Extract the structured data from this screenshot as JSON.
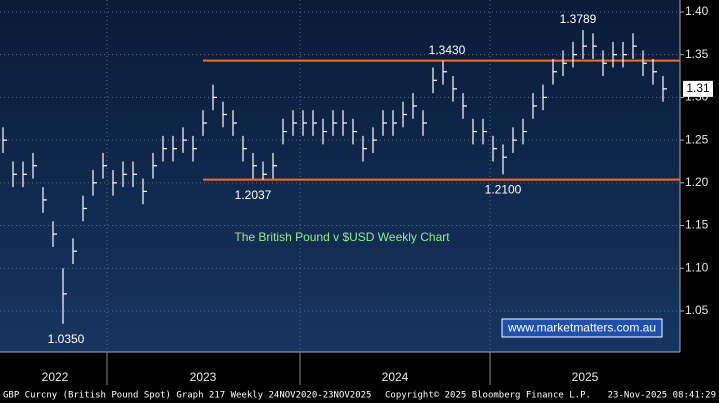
{
  "chart_data": {
    "type": "ohlc",
    "title": "The British Pound v $USD Weekly Chart",
    "watermark": "www.marketmatters.com.au",
    "footer_left": "GBP Curcny (British Pound Spot) Graph 217 Weekly 24NOV2020-23NOV2025",
    "footer_center": "Copyright© 2025 Bloomberg Finance L.P.",
    "footer_right": "23-Nov-2025 08:41:29",
    "x_axis_labels": [
      "2022",
      "2023",
      "2024",
      "2025"
    ],
    "color": "#ffffff",
    "level_color": "#ff6a1a",
    "title_color": "#8ef08e",
    "ylim": [
      1.002,
      1.414
    ],
    "yticks": [
      1.05,
      {
        "value": 1.1,
        "label": "1.10"
      },
      1.15,
      {
        "value": 1.2,
        "label": "1.20"
      },
      1.25,
      {
        "value": 1.3,
        "label": "1.30"
      },
      1.35,
      {
        "value": 1.4,
        "label": "1.40"
      }
    ],
    "grid": true,
    "levels": [
      1.343,
      1.2037
    ],
    "last_label": "1.31",
    "annotations": [
      {
        "value": 1.3789,
        "label": "1.3789"
      },
      {
        "value": 1.343,
        "label": "1.3430"
      },
      {
        "value": 1.2037,
        "label": "1.2037"
      },
      {
        "value": 1.21,
        "label": "1.2100"
      },
      {
        "value": 1.035,
        "label": "1.0350"
      }
    ],
    "high": [
      1.265,
      1.225,
      1.225,
      1.235,
      1.195,
      1.155,
      1.1,
      1.135,
      1.185,
      1.215,
      1.235,
      1.215,
      1.225,
      1.225,
      1.205,
      1.235,
      1.255,
      1.255,
      1.265,
      1.255,
      1.285,
      1.315,
      1.295,
      1.285,
      1.255,
      1.235,
      1.225,
      1.235,
      1.275,
      1.285,
      1.285,
      1.285,
      1.275,
      1.285,
      1.285,
      1.275,
      1.255,
      1.265,
      1.285,
      1.285,
      1.295,
      1.305,
      1.285,
      1.335,
      1.343,
      1.325,
      1.305,
      1.275,
      1.275,
      1.255,
      1.245,
      1.265,
      1.275,
      1.305,
      1.315,
      1.345,
      1.355,
      1.365,
      1.3789,
      1.375,
      1.355,
      1.365,
      1.365,
      1.375,
      1.355,
      1.345,
      1.325
    ],
    "low": [
      1.235,
      1.195,
      1.195,
      1.205,
      1.165,
      1.125,
      1.035,
      1.105,
      1.155,
      1.185,
      1.205,
      1.185,
      1.195,
      1.195,
      1.175,
      1.205,
      1.225,
      1.225,
      1.235,
      1.225,
      1.255,
      1.285,
      1.265,
      1.255,
      1.225,
      1.205,
      1.2037,
      1.205,
      1.245,
      1.255,
      1.255,
      1.255,
      1.245,
      1.255,
      1.255,
      1.245,
      1.225,
      1.235,
      1.255,
      1.255,
      1.265,
      1.275,
      1.255,
      1.305,
      1.315,
      1.295,
      1.275,
      1.245,
      1.245,
      1.225,
      1.21,
      1.235,
      1.245,
      1.275,
      1.285,
      1.315,
      1.325,
      1.335,
      1.345,
      1.345,
      1.325,
      1.335,
      1.335,
      1.345,
      1.325,
      1.315,
      1.295
    ],
    "close": [
      1.25,
      1.21,
      1.21,
      1.22,
      1.18,
      1.14,
      1.07,
      1.12,
      1.17,
      1.2,
      1.22,
      1.2,
      1.21,
      1.21,
      1.19,
      1.22,
      1.24,
      1.24,
      1.25,
      1.24,
      1.27,
      1.3,
      1.28,
      1.27,
      1.24,
      1.22,
      1.21,
      1.22,
      1.26,
      1.27,
      1.27,
      1.27,
      1.26,
      1.27,
      1.27,
      1.26,
      1.24,
      1.25,
      1.27,
      1.27,
      1.28,
      1.29,
      1.27,
      1.32,
      1.33,
      1.31,
      1.29,
      1.26,
      1.26,
      1.24,
      1.23,
      1.25,
      1.26,
      1.29,
      1.3,
      1.33,
      1.34,
      1.35,
      1.36,
      1.36,
      1.34,
      1.35,
      1.35,
      1.36,
      1.34,
      1.33,
      1.31
    ]
  }
}
